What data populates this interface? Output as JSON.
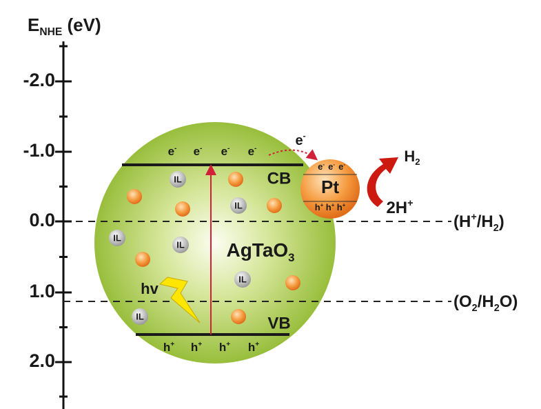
{
  "axis": {
    "title": [
      {
        "t": "E"
      },
      {
        "sub": "NHE"
      },
      {
        "t": " (eV)"
      }
    ],
    "ticks": [
      "-2.0",
      "-1.0",
      "0.0",
      "1.0",
      "2.0"
    ]
  },
  "particle": {
    "material": [
      {
        "t": "AgTaO"
      },
      {
        "sub": "3"
      }
    ],
    "cb": "CB",
    "vb": "VB",
    "light": "hv",
    "il_labels": [
      "IL",
      "IL",
      "IL",
      "IL",
      "IL",
      "IL"
    ],
    "cb_electrons": [
      [
        {
          "t": "e"
        },
        {
          "sup": "-"
        }
      ],
      [
        {
          "t": "e"
        },
        {
          "sup": "-"
        }
      ],
      [
        {
          "t": "e"
        },
        {
          "sup": "-"
        }
      ],
      [
        {
          "t": "e"
        },
        {
          "sup": "-"
        }
      ]
    ],
    "vb_holes": [
      [
        {
          "t": "h"
        },
        {
          "sup": "+"
        }
      ],
      [
        {
          "t": "h"
        },
        {
          "sup": "+"
        }
      ],
      [
        {
          "t": "h"
        },
        {
          "sup": "+"
        }
      ],
      [
        {
          "t": "h"
        },
        {
          "sup": "+"
        }
      ]
    ]
  },
  "cocatalyst": {
    "label": "Pt",
    "electrons": [
      [
        {
          "t": "e"
        },
        {
          "sup": "-"
        }
      ],
      [
        {
          "t": "e"
        },
        {
          "sup": "-"
        }
      ],
      [
        {
          "t": "e"
        },
        {
          "sup": "-"
        }
      ]
    ],
    "holes": [
      [
        {
          "t": "h"
        },
        {
          "sup": "+"
        }
      ],
      [
        {
          "t": "h"
        },
        {
          "sup": "+"
        }
      ],
      [
        {
          "t": "h"
        },
        {
          "sup": "+"
        }
      ]
    ]
  },
  "transfer": [
    {
      "t": "e"
    },
    {
      "sup": "-"
    }
  ],
  "reaction": {
    "product": [
      {
        "t": "H"
      },
      {
        "sub": "2"
      }
    ],
    "reactant": [
      {
        "t": "2H"
      },
      {
        "sup": "+"
      }
    ]
  },
  "levels": [
    [
      {
        "t": "(H"
      },
      {
        "sup": "+"
      },
      {
        "t": "/H"
      },
      {
        "sub": "2"
      },
      {
        "t": ")"
      }
    ],
    [
      {
        "t": "(O"
      },
      {
        "sub": "2"
      },
      {
        "t": "/H"
      },
      {
        "sub": "2"
      },
      {
        "t": "O)"
      }
    ]
  ]
}
